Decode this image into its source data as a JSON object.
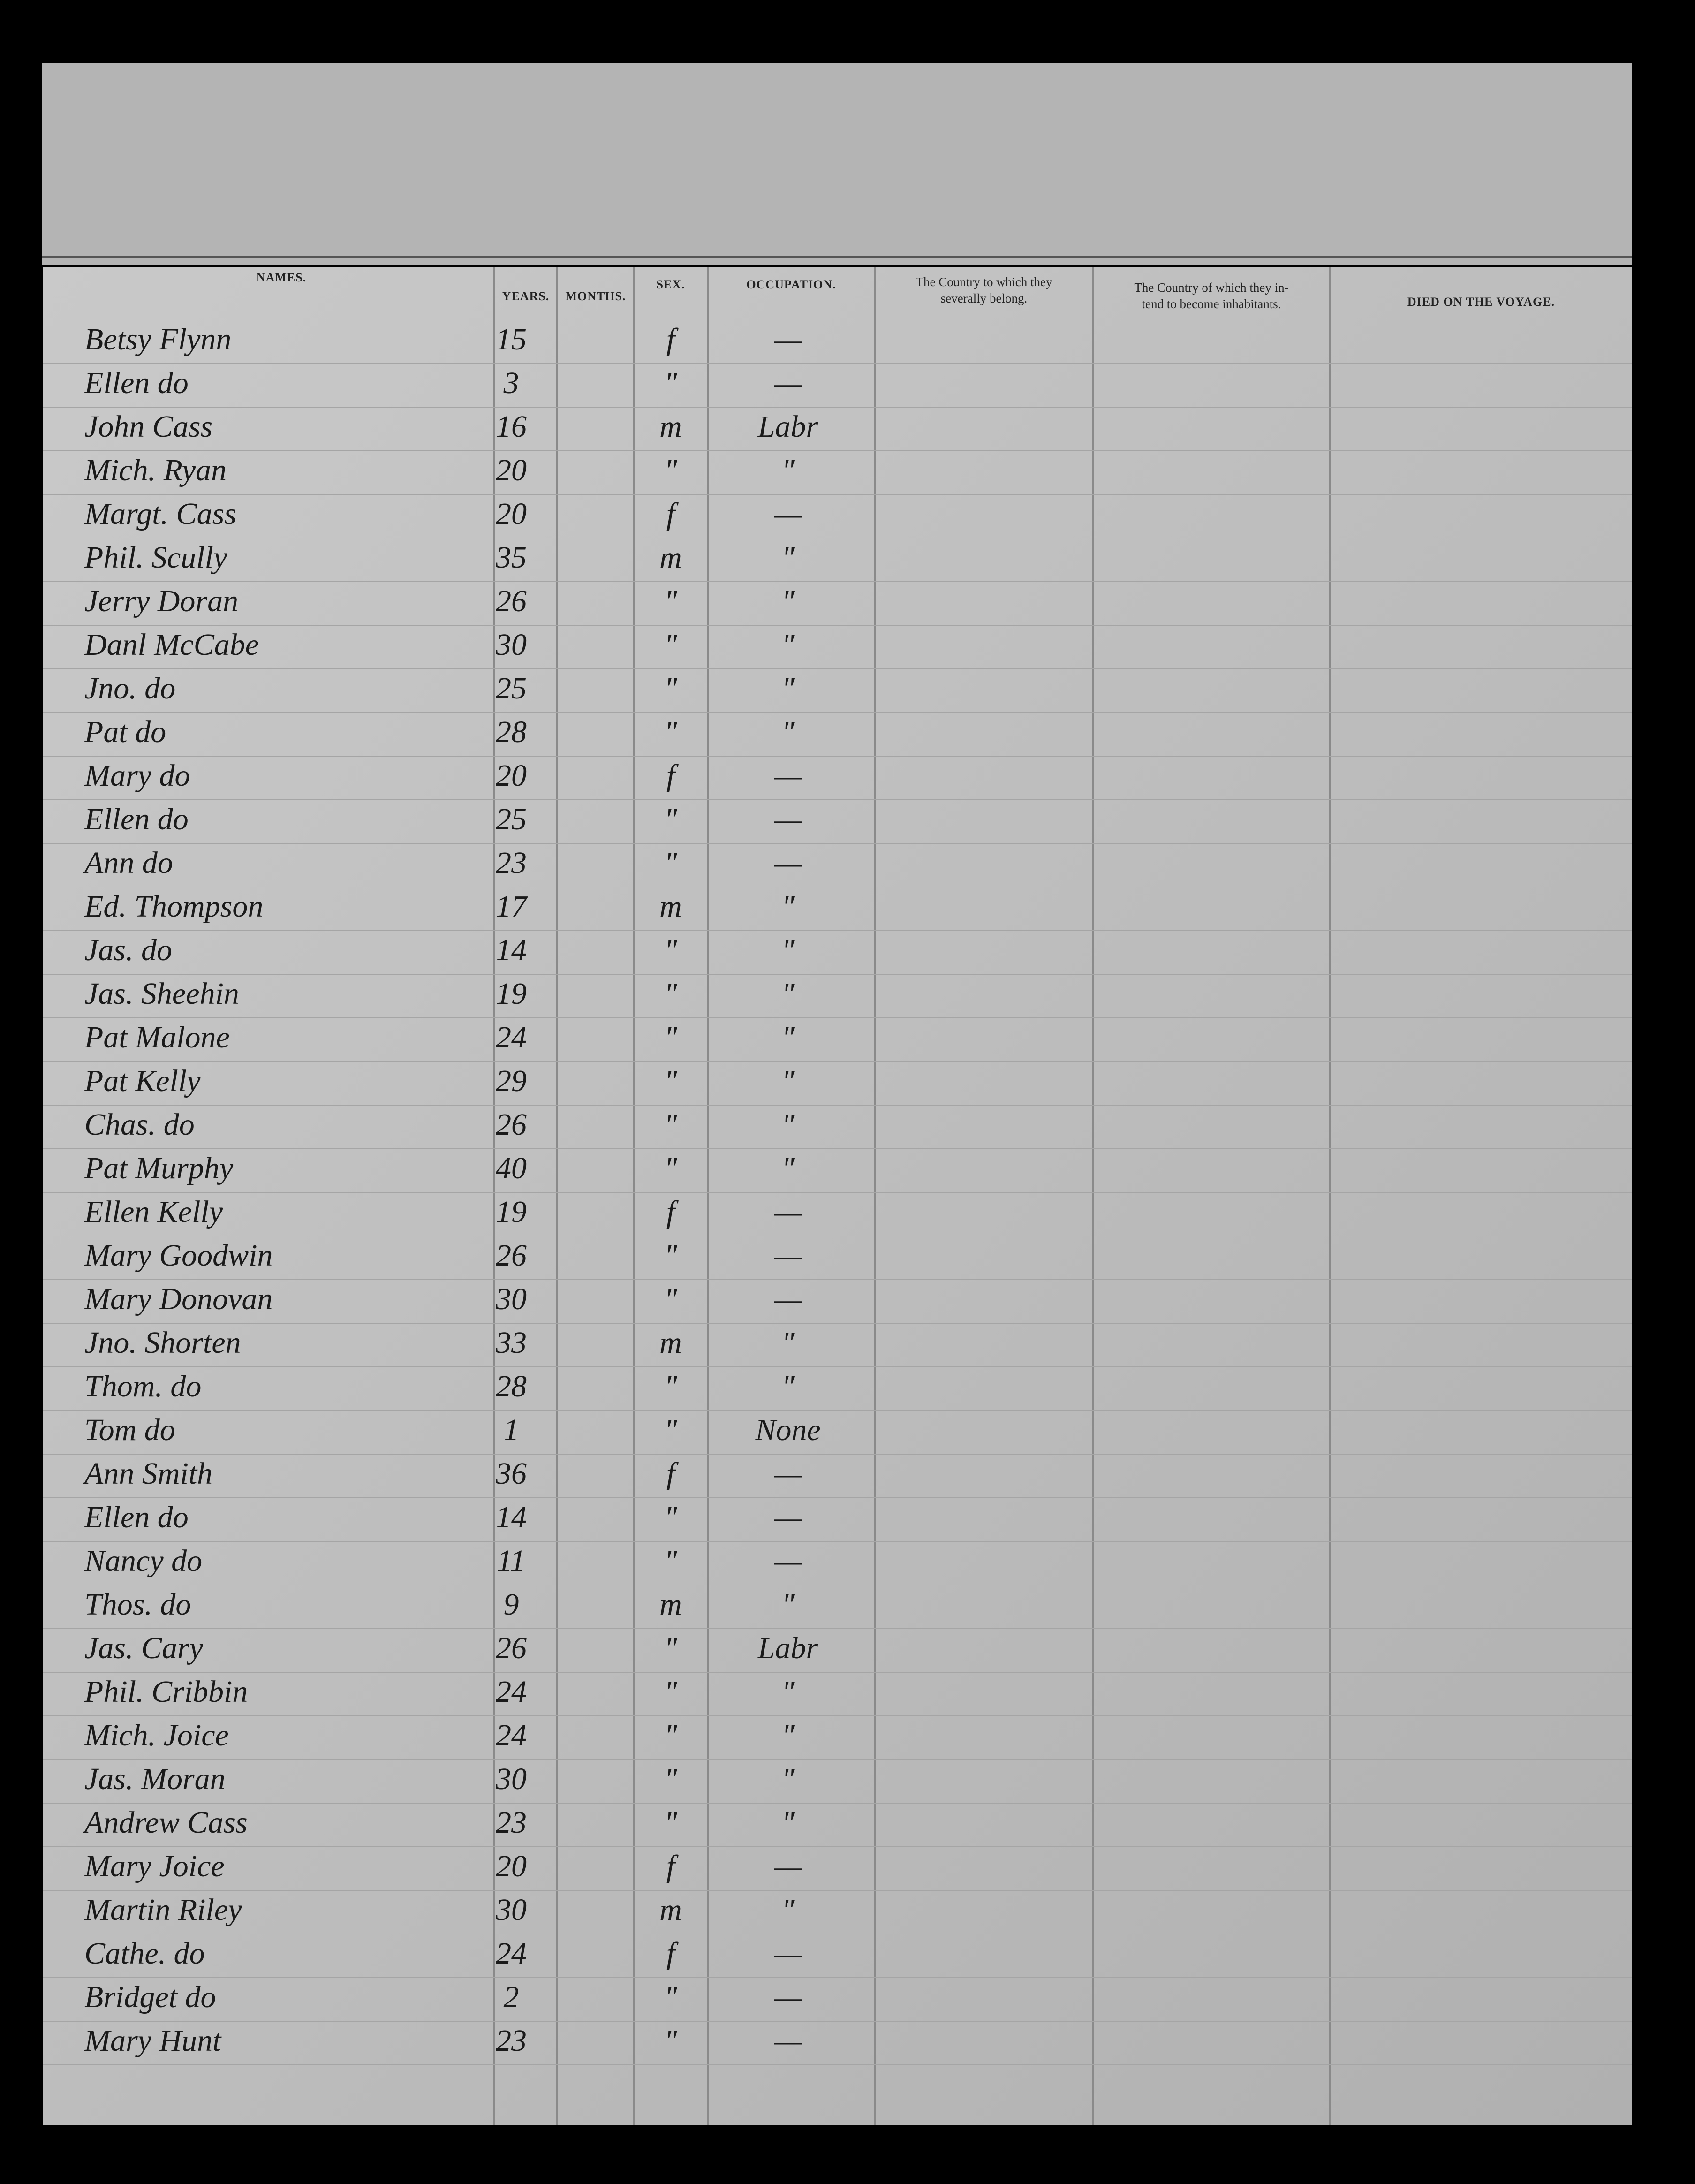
{
  "header": {
    "names": "NAMES.",
    "years": "YEARS.",
    "months": "MONTHS.",
    "sex": "SEX.",
    "occupation": "OCCUPATION.",
    "country_belong": [
      "The Country to which they",
      "severally belong."
    ],
    "country_inhabit": [
      "The Country of which they in-",
      "tend to become inhabitants."
    ],
    "died": "DIED ON THE VOYAGE."
  },
  "table": {
    "rows": [
      [
        "Betsy Flynn",
        "15",
        "f",
        "—"
      ],
      [
        "Ellen do",
        "3",
        "\"",
        "—"
      ],
      [
        "John Cass",
        "16",
        "m",
        "Labr"
      ],
      [
        "Mich. Ryan",
        "20",
        "\"",
        "\""
      ],
      [
        "Margt. Cass",
        "20",
        "f",
        "—"
      ],
      [
        "Phil. Scully",
        "35",
        "m",
        "\""
      ],
      [
        "Jerry Doran",
        "26",
        "\"",
        "\""
      ],
      [
        "Danl McCabe",
        "30",
        "\"",
        "\""
      ],
      [
        "Jno. do",
        "25",
        "\"",
        "\""
      ],
      [
        "Pat do",
        "28",
        "\"",
        "\""
      ],
      [
        "Mary do",
        "20",
        "f",
        "—"
      ],
      [
        "Ellen do",
        "25",
        "\"",
        "—"
      ],
      [
        "Ann do",
        "23",
        "\"",
        "—"
      ],
      [
        "Ed. Thompson",
        "17",
        "m",
        "\""
      ],
      [
        "Jas. do",
        "14",
        "\"",
        "\""
      ],
      [
        "Jas. Sheehin",
        "19",
        "\"",
        "\""
      ],
      [
        "Pat Malone",
        "24",
        "\"",
        "\""
      ],
      [
        "Pat Kelly",
        "29",
        "\"",
        "\""
      ],
      [
        "Chas. do",
        "26",
        "\"",
        "\""
      ],
      [
        "Pat Murphy",
        "40",
        "\"",
        "\""
      ],
      [
        "Ellen Kelly",
        "19",
        "f",
        "—"
      ],
      [
        "Mary Goodwin",
        "26",
        "\"",
        "—"
      ],
      [
        "Mary Donovan",
        "30",
        "\"",
        "—"
      ],
      [
        "Jno. Shorten",
        "33",
        "m",
        "\""
      ],
      [
        "Thom. do",
        "28",
        "\"",
        "\""
      ],
      [
        "Tom do",
        "1",
        "\"",
        "None"
      ],
      [
        "Ann Smith",
        "36",
        "f",
        "—"
      ],
      [
        "Ellen do",
        "14",
        "\"",
        "—"
      ],
      [
        "Nancy do",
        "11",
        "\"",
        "—"
      ],
      [
        "Thos. do",
        "9",
        "m",
        "\""
      ],
      [
        "Jas. Cary",
        "26",
        "\"",
        "Labr"
      ],
      [
        "Phil. Cribbin",
        "24",
        "\"",
        "\""
      ],
      [
        "Mich. Joice",
        "24",
        "\"",
        "\""
      ],
      [
        "Jas. Moran",
        "30",
        "\"",
        "\""
      ],
      [
        "Andrew Cass",
        "23",
        "\"",
        "\""
      ],
      [
        "Mary Joice",
        "20",
        "f",
        "—"
      ],
      [
        "Martin Riley",
        "30",
        "m",
        "\""
      ],
      [
        "Cathe. do",
        "24",
        "f",
        "—"
      ],
      [
        "Bridget do",
        "2",
        "\"",
        "—"
      ],
      [
        "Mary Hunt",
        "23",
        "\"",
        "—"
      ]
    ]
  }
}
